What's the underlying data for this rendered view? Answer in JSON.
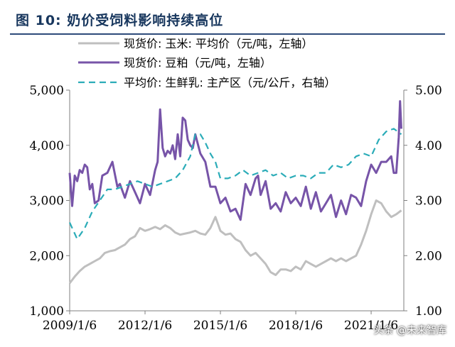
{
  "header": {
    "title": "图 10:  奶价受饲料影响持续高位"
  },
  "watermark": "头条 @未来智库",
  "chart_data": {
    "type": "line",
    "title": "图 10:  奶价受饲料影响持续高位",
    "xlabel": "",
    "ylabel": "",
    "x_ticks": [
      "2009/1/6",
      "2012/1/6",
      "2015/1/6",
      "2018/1/6",
      "2021/1/6"
    ],
    "x_range": [
      2009.0,
      2022.3
    ],
    "ylim_left": [
      1000,
      5000
    ],
    "yticks_left": [
      "1,000",
      "2,000",
      "3,000",
      "4,000",
      "5,000"
    ],
    "ylim_right": [
      1.0,
      5.0
    ],
    "yticks_right": [
      "1.00",
      "2.00",
      "3.00",
      "4.00",
      "5.00"
    ],
    "grid": false,
    "legend_placement": "top-left",
    "colors": {
      "corn": "#bfbfbf",
      "soymeal": "#7754a8",
      "milk": "#2bacb8",
      "axis": "#7f7f7f",
      "title": "#17365d"
    },
    "series": [
      {
        "name": "现货价: 玉米: 平均价（元/吨，左轴）",
        "axis": "left",
        "style": "solid",
        "x": [
          2009.0,
          2009.2,
          2009.4,
          2009.6,
          2009.8,
          2010.0,
          2010.2,
          2010.4,
          2010.6,
          2010.8,
          2011.0,
          2011.2,
          2011.4,
          2011.6,
          2011.8,
          2012.0,
          2012.2,
          2012.4,
          2012.6,
          2012.8,
          2013.0,
          2013.2,
          2013.4,
          2013.6,
          2013.8,
          2014.0,
          2014.2,
          2014.4,
          2014.6,
          2014.8,
          2015.0,
          2015.2,
          2015.4,
          2015.6,
          2015.8,
          2016.0,
          2016.2,
          2016.4,
          2016.6,
          2016.8,
          2017.0,
          2017.2,
          2017.4,
          2017.6,
          2017.8,
          2018.0,
          2018.2,
          2018.4,
          2018.6,
          2018.8,
          2019.0,
          2019.2,
          2019.4,
          2019.6,
          2019.8,
          2020.0,
          2020.2,
          2020.4,
          2020.6,
          2020.8,
          2021.0,
          2021.2,
          2021.4,
          2021.6,
          2021.8,
          2022.0,
          2022.2
        ],
        "values": [
          1500,
          1620,
          1720,
          1800,
          1850,
          1900,
          1950,
          2050,
          2080,
          2100,
          2150,
          2200,
          2300,
          2350,
          2500,
          2450,
          2480,
          2520,
          2480,
          2550,
          2500,
          2420,
          2380,
          2400,
          2420,
          2450,
          2400,
          2380,
          2500,
          2700,
          2450,
          2380,
          2400,
          2300,
          2250,
          2100,
          2000,
          2050,
          1950,
          1850,
          1700,
          1650,
          1750,
          1750,
          1720,
          1800,
          1750,
          1900,
          1850,
          1800,
          1850,
          1900,
          1950,
          1900,
          1950,
          1900,
          1950,
          2000,
          2200,
          2450,
          2750,
          3000,
          2950,
          2800,
          2700,
          2750,
          2820
        ]
      },
      {
        "name": "现货价: 豆粕（元/吨，左轴）",
        "axis": "left",
        "style": "solid",
        "x": [
          2009.0,
          2009.1,
          2009.2,
          2009.3,
          2009.4,
          2009.5,
          2009.6,
          2009.7,
          2009.8,
          2009.9,
          2010.0,
          2010.15,
          2010.3,
          2010.5,
          2010.7,
          2010.9,
          2011.0,
          2011.2,
          2011.4,
          2011.6,
          2011.8,
          2012.0,
          2012.2,
          2012.4,
          2012.5,
          2012.6,
          2012.7,
          2012.8,
          2012.9,
          2013.0,
          2013.1,
          2013.2,
          2013.3,
          2013.4,
          2013.5,
          2013.6,
          2013.7,
          2013.8,
          2013.9,
          2014.0,
          2014.2,
          2014.4,
          2014.6,
          2014.8,
          2015.0,
          2015.2,
          2015.4,
          2015.6,
          2015.8,
          2016.0,
          2016.2,
          2016.4,
          2016.5,
          2016.6,
          2016.8,
          2017.0,
          2017.2,
          2017.4,
          2017.6,
          2017.8,
          2018.0,
          2018.2,
          2018.4,
          2018.6,
          2018.8,
          2019.0,
          2019.2,
          2019.4,
          2019.6,
          2019.8,
          2020.0,
          2020.2,
          2020.4,
          2020.6,
          2020.8,
          2021.0,
          2021.2,
          2021.4,
          2021.6,
          2021.8,
          2021.9,
          2022.0,
          2022.1,
          2022.15,
          2022.2
        ],
        "values": [
          3500,
          2900,
          3450,
          3350,
          3550,
          3500,
          3650,
          3600,
          3200,
          3300,
          2950,
          3000,
          3450,
          3500,
          3700,
          3250,
          3300,
          3050,
          3350,
          3150,
          2950,
          3300,
          3100,
          3550,
          3700,
          4650,
          3950,
          3800,
          3900,
          3850,
          4000,
          3750,
          4200,
          3800,
          4500,
          4450,
          4100,
          4000,
          3950,
          4200,
          3850,
          3700,
          3250,
          3250,
          2950,
          3050,
          2800,
          2850,
          2650,
          3300,
          3100,
          3400,
          3450,
          3100,
          3350,
          2850,
          2950,
          2800,
          3150,
          2950,
          3050,
          2900,
          3250,
          2850,
          3150,
          2800,
          2950,
          3100,
          2700,
          3000,
          2750,
          3100,
          3050,
          2900,
          3350,
          3650,
          3500,
          3700,
          3700,
          3800,
          3500,
          3500,
          4150,
          4800,
          4300
        ]
      },
      {
        "name": "平均价: 生鲜乳: 主产区（元/公斤，右轴）",
        "axis": "right",
        "style": "dashed",
        "x": [
          2009.0,
          2009.3,
          2009.6,
          2009.9,
          2010.2,
          2010.5,
          2010.8,
          2011.1,
          2011.4,
          2011.7,
          2012.0,
          2012.3,
          2012.6,
          2012.9,
          2013.2,
          2013.5,
          2013.8,
          2014.0,
          2014.2,
          2014.4,
          2014.6,
          2014.8,
          2015.0,
          2015.3,
          2015.6,
          2015.9,
          2016.2,
          2016.5,
          2016.8,
          2017.1,
          2017.4,
          2017.7,
          2018.0,
          2018.3,
          2018.6,
          2018.9,
          2019.2,
          2019.5,
          2019.8,
          2020.1,
          2020.4,
          2020.7,
          2021.0,
          2021.3,
          2021.6,
          2021.9,
          2022.2
        ],
        "values": [
          2.6,
          2.3,
          2.5,
          2.8,
          3.0,
          3.2,
          3.2,
          3.25,
          3.3,
          3.35,
          3.3,
          3.25,
          3.3,
          3.35,
          3.4,
          3.55,
          3.8,
          4.2,
          4.2,
          4.05,
          3.85,
          3.7,
          3.4,
          3.4,
          3.45,
          3.55,
          3.45,
          3.5,
          3.55,
          3.45,
          3.5,
          3.4,
          3.45,
          3.45,
          3.4,
          3.5,
          3.5,
          3.65,
          3.6,
          3.65,
          3.8,
          3.85,
          3.8,
          4.1,
          4.25,
          4.3,
          4.2
        ]
      }
    ]
  }
}
